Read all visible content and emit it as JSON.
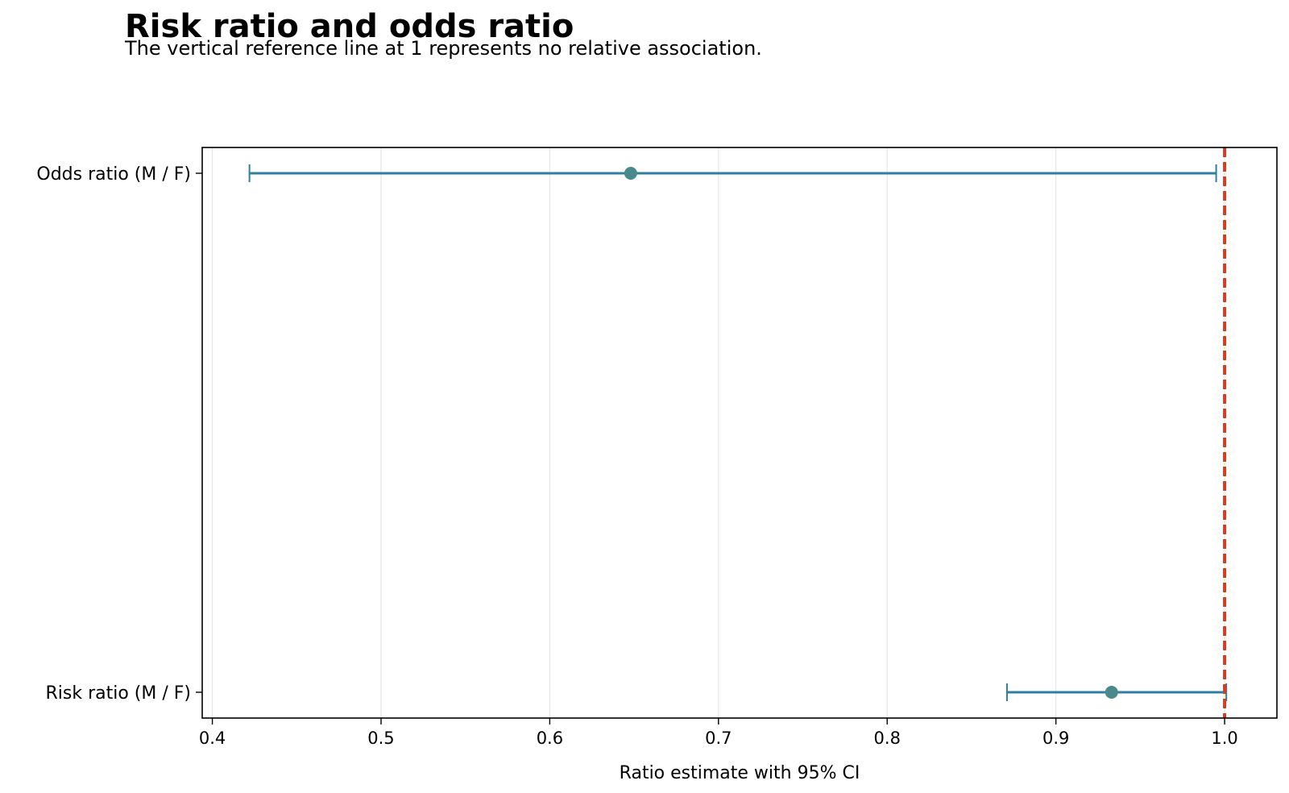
{
  "chart_data": {
    "type": "forest",
    "title": "Risk ratio and odds ratio",
    "subtitle": "The vertical reference line at 1 represents no relative association.",
    "xlabel": "Ratio estimate with 95% CI",
    "xlim": [
      0.394,
      1.031
    ],
    "xticks": [
      0.4,
      0.5,
      0.6,
      0.7,
      0.8,
      0.9,
      1.0
    ],
    "xtick_labels": [
      "0.4",
      "0.5",
      "0.6",
      "0.7",
      "0.8",
      "0.9",
      "1.0"
    ],
    "reference_line": 1.0,
    "grid": "vertical",
    "rows": [
      {
        "label": "Odds ratio (M / F)",
        "estimate": 0.648,
        "lower": 0.422,
        "upper": 0.995
      },
      {
        "label": "Risk ratio (M / F)",
        "estimate": 0.933,
        "lower": 0.871,
        "upper": 1.001
      }
    ],
    "colors": {
      "ci_line": "#2e7fa0",
      "point": "#4a8a8c",
      "reference": "#cc4125",
      "grid": "#e6e6e6"
    }
  }
}
